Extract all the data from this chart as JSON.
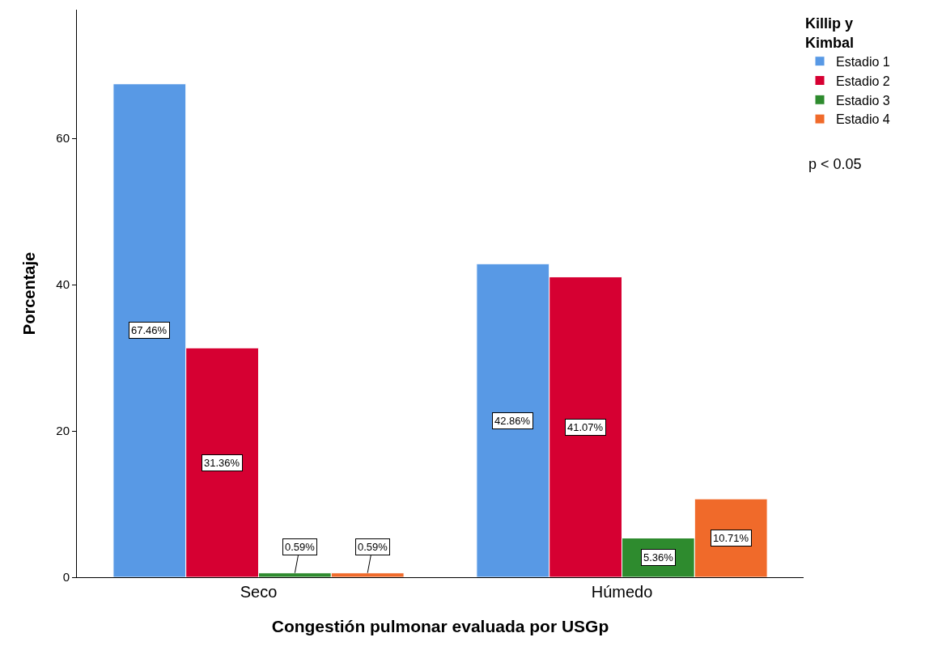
{
  "chart_data": {
    "type": "bar",
    "xlabel": "Congestión pulmonar evaluada por USGp",
    "ylabel": "Porcentaje",
    "legend_title": "Killip y Kimbal",
    "categories": [
      "Seco",
      "Húmedo"
    ],
    "series": [
      {
        "name": "Estadio 1",
        "color": "#5899e5",
        "values": [
          67.46,
          42.86
        ],
        "value_labels": [
          "67.46%",
          "42.86%"
        ]
      },
      {
        "name": "Estadio 2",
        "color": "#d60032",
        "values": [
          31.36,
          41.07
        ],
        "value_labels": [
          "31.36%",
          "41.07%"
        ]
      },
      {
        "name": "Estadio 3",
        "color": "#2e8b2e",
        "values": [
          0.59,
          5.36
        ],
        "value_labels": [
          "0.59%",
          "5.36%"
        ]
      },
      {
        "name": "Estadio 4",
        "color": "#f06a2a",
        "values": [
          0.59,
          10.71
        ],
        "value_labels": [
          "0.59%",
          "10.71%"
        ]
      }
    ],
    "ylim": [
      0,
      77.6
    ],
    "yticks": [
      0,
      20,
      40,
      60
    ],
    "legend": "top right",
    "annotations": [
      "p < 0.05"
    ]
  }
}
